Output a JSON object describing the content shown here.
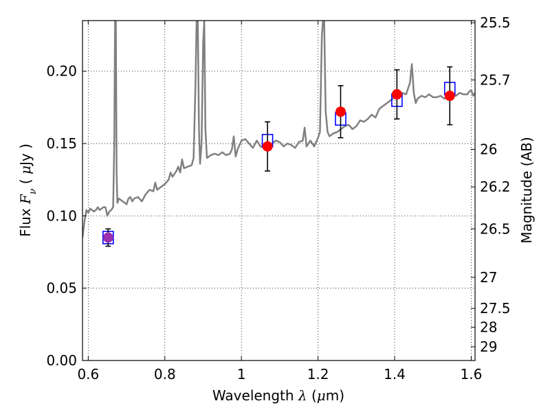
{
  "chart_data": {
    "type": "scatter",
    "title": "",
    "xlabel": "Wavelength  λ (μm)",
    "ylabel": "Flux  Fν  ( μJy )",
    "ylabel2": "Magnitude (AB)",
    "xlim": [
      0.585,
      1.61
    ],
    "ylim": [
      0.0,
      0.235
    ],
    "grid": true,
    "x_ticks": [
      0.6,
      0.8,
      1.0,
      1.2,
      1.4,
      1.6
    ],
    "x_tick_labels": [
      "0.6",
      "0.8",
      "1",
      "1.2",
      "1.4",
      "1.6"
    ],
    "y_ticks": [
      0.0,
      0.05,
      0.1,
      0.15,
      0.2
    ],
    "y_tick_labels": [
      "0.00",
      "0.05",
      "0.10",
      "0.15",
      "0.20"
    ],
    "mag_ticks": [
      {
        "flux": 0.2335,
        "label": "25.5"
      },
      {
        "flux": 0.194,
        "label": "25.7"
      },
      {
        "flux": 0.146,
        "label": "26"
      },
      {
        "flux": 0.12,
        "label": "26.2"
      },
      {
        "flux": 0.091,
        "label": "26.5"
      },
      {
        "flux": 0.0575,
        "label": "27"
      },
      {
        "flux": 0.036,
        "label": "27.5"
      },
      {
        "flux": 0.023,
        "label": "28"
      },
      {
        "flux": 0.0095,
        "label": "29"
      }
    ],
    "colors": {
      "model": "#808080",
      "observed": "#ff0000",
      "observed_first": "#9b30b0",
      "synthetic": "#0000ff",
      "errorbar": "#000000"
    },
    "series": [
      {
        "kind": "model_spectrum",
        "points": [
          [
            0.585,
            0.085
          ],
          [
            0.59,
            0.096
          ],
          [
            0.595,
            0.104
          ],
          [
            0.6,
            0.102
          ],
          [
            0.605,
            0.105
          ],
          [
            0.61,
            0.104
          ],
          [
            0.615,
            0.103
          ],
          [
            0.62,
            0.104
          ],
          [
            0.625,
            0.106
          ],
          [
            0.63,
            0.104
          ],
          [
            0.635,
            0.105
          ],
          [
            0.64,
            0.106
          ],
          [
            0.645,
            0.106
          ],
          [
            0.65,
            0.1
          ],
          [
            0.655,
            0.103
          ],
          [
            0.66,
            0.104
          ],
          [
            0.665,
            0.106
          ],
          [
            0.668,
            0.15
          ],
          [
            0.67,
            0.235
          ],
          [
            0.672,
            0.235
          ],
          [
            0.674,
            0.13
          ],
          [
            0.676,
            0.109
          ],
          [
            0.68,
            0.112
          ],
          [
            0.69,
            0.11
          ],
          [
            0.7,
            0.108
          ],
          [
            0.705,
            0.112
          ],
          [
            0.71,
            0.113
          ],
          [
            0.715,
            0.11
          ],
          [
            0.72,
            0.112
          ],
          [
            0.73,
            0.113
          ],
          [
            0.74,
            0.11
          ],
          [
            0.75,
            0.115
          ],
          [
            0.76,
            0.118
          ],
          [
            0.77,
            0.117
          ],
          [
            0.775,
            0.123
          ],
          [
            0.78,
            0.118
          ],
          [
            0.79,
            0.12
          ],
          [
            0.8,
            0.122
          ],
          [
            0.81,
            0.125
          ],
          [
            0.815,
            0.13
          ],
          [
            0.82,
            0.127
          ],
          [
            0.83,
            0.131
          ],
          [
            0.835,
            0.134
          ],
          [
            0.84,
            0.13
          ],
          [
            0.845,
            0.139
          ],
          [
            0.85,
            0.133
          ],
          [
            0.86,
            0.134
          ],
          [
            0.87,
            0.135
          ],
          [
            0.875,
            0.14
          ],
          [
            0.88,
            0.19
          ],
          [
            0.883,
            0.235
          ],
          [
            0.886,
            0.235
          ],
          [
            0.889,
            0.16
          ],
          [
            0.892,
            0.136
          ],
          [
            0.896,
            0.15
          ],
          [
            0.9,
            0.22
          ],
          [
            0.903,
            0.235
          ],
          [
            0.906,
            0.16
          ],
          [
            0.91,
            0.14
          ],
          [
            0.92,
            0.142
          ],
          [
            0.93,
            0.143
          ],
          [
            0.94,
            0.142
          ],
          [
            0.95,
            0.144
          ],
          [
            0.96,
            0.142
          ],
          [
            0.97,
            0.143
          ],
          [
            0.975,
            0.146
          ],
          [
            0.98,
            0.155
          ],
          [
            0.985,
            0.141
          ],
          [
            0.99,
            0.146
          ],
          [
            1.0,
            0.152
          ],
          [
            1.01,
            0.153
          ],
          [
            1.02,
            0.15
          ],
          [
            1.03,
            0.147
          ],
          [
            1.04,
            0.152
          ],
          [
            1.05,
            0.148
          ],
          [
            1.06,
            0.147
          ],
          [
            1.065,
            0.15
          ],
          [
            1.07,
            0.146
          ],
          [
            1.08,
            0.15
          ],
          [
            1.09,
            0.152
          ],
          [
            1.1,
            0.151
          ],
          [
            1.11,
            0.148
          ],
          [
            1.12,
            0.15
          ],
          [
            1.13,
            0.149
          ],
          [
            1.14,
            0.147
          ],
          [
            1.15,
            0.151
          ],
          [
            1.16,
            0.152
          ],
          [
            1.165,
            0.161
          ],
          [
            1.17,
            0.148
          ],
          [
            1.18,
            0.152
          ],
          [
            1.19,
            0.148
          ],
          [
            1.2,
            0.154
          ],
          [
            1.205,
            0.158
          ],
          [
            1.21,
            0.225
          ],
          [
            1.213,
            0.235
          ],
          [
            1.216,
            0.235
          ],
          [
            1.22,
            0.172
          ],
          [
            1.225,
            0.158
          ],
          [
            1.23,
            0.155
          ],
          [
            1.24,
            0.157
          ],
          [
            1.25,
            0.158
          ],
          [
            1.26,
            0.16
          ],
          [
            1.27,
            0.162
          ],
          [
            1.28,
            0.163
          ],
          [
            1.29,
            0.16
          ],
          [
            1.3,
            0.162
          ],
          [
            1.31,
            0.166
          ],
          [
            1.32,
            0.165
          ],
          [
            1.33,
            0.167
          ],
          [
            1.34,
            0.17
          ],
          [
            1.35,
            0.168
          ],
          [
            1.36,
            0.174
          ],
          [
            1.37,
            0.176
          ],
          [
            1.38,
            0.178
          ],
          [
            1.39,
            0.18
          ],
          [
            1.4,
            0.182
          ],
          [
            1.41,
            0.184
          ],
          [
            1.42,
            0.185
          ],
          [
            1.43,
            0.184
          ],
          [
            1.44,
            0.192
          ],
          [
            1.445,
            0.205
          ],
          [
            1.45,
            0.185
          ],
          [
            1.455,
            0.178
          ],
          [
            1.46,
            0.181
          ],
          [
            1.47,
            0.183
          ],
          [
            1.48,
            0.182
          ],
          [
            1.49,
            0.184
          ],
          [
            1.5,
            0.182
          ],
          [
            1.51,
            0.182
          ],
          [
            1.52,
            0.183
          ],
          [
            1.53,
            0.181
          ],
          [
            1.54,
            0.183
          ],
          [
            1.55,
            0.183
          ],
          [
            1.56,
            0.183
          ],
          [
            1.57,
            0.185
          ],
          [
            1.58,
            0.184
          ],
          [
            1.59,
            0.184
          ],
          [
            1.595,
            0.186
          ],
          [
            1.6,
            0.187
          ],
          [
            1.605,
            0.183
          ],
          [
            1.61,
            0.185
          ]
        ]
      },
      {
        "kind": "synthetic_photometry",
        "marker": "square",
        "points": [
          [
            0.652,
            0.085
          ],
          [
            1.068,
            0.152
          ],
          [
            1.259,
            0.167
          ],
          [
            1.406,
            0.18
          ],
          [
            1.544,
            0.188
          ]
        ]
      },
      {
        "kind": "observed_photometry",
        "marker": "circle",
        "points": [
          {
            "x": 0.652,
            "y": 0.085,
            "err": 0.006
          },
          {
            "x": 1.068,
            "y": 0.148,
            "err": 0.017
          },
          {
            "x": 1.259,
            "y": 0.172,
            "err": 0.018
          },
          {
            "x": 1.406,
            "y": 0.184,
            "err": 0.017
          },
          {
            "x": 1.544,
            "y": 0.183,
            "err": 0.02
          }
        ]
      }
    ]
  }
}
